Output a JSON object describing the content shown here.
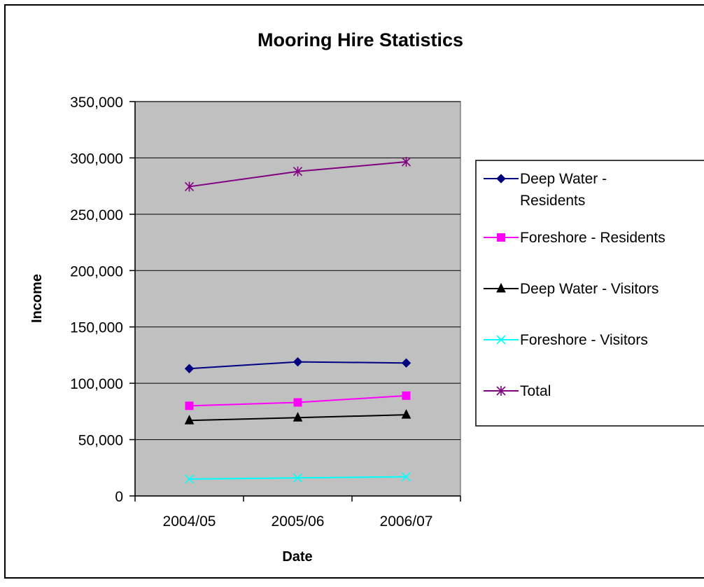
{
  "chart_data": {
    "type": "line",
    "title": "Mooring Hire Statistics",
    "xlabel": "Date",
    "ylabel": "Income",
    "categories": [
      "2004/05",
      "2005/06",
      "2006/07"
    ],
    "ylim": [
      0,
      350000
    ],
    "yticks": [
      0,
      50000,
      100000,
      150000,
      200000,
      250000,
      300000,
      350000
    ],
    "ytick_labels": [
      "0",
      "50,000",
      "100,000",
      "150,000",
      "200,000",
      "250,000",
      "300,000",
      "350,000"
    ],
    "grid": true,
    "legend_position": "right",
    "plot_background": "#c0c0c0",
    "series": [
      {
        "name": "Deep Water - Residents",
        "legend_lines": [
          "Deep Water -",
          "Residents"
        ],
        "color": "#000080",
        "marker": "diamond",
        "values": [
          113000,
          119000,
          118000
        ]
      },
      {
        "name": "Foreshore - Residents",
        "legend_lines": [
          "Foreshore - Residents"
        ],
        "color": "#ff00ff",
        "marker": "square",
        "values": [
          80000,
          83000,
          89000
        ]
      },
      {
        "name": "Deep Water - Visitors",
        "legend_lines": [
          "Deep Water - Visitors"
        ],
        "color": "#000000",
        "marker": "triangle",
        "values": [
          67000,
          69500,
          72000
        ]
      },
      {
        "name": "Foreshore - Visitors",
        "legend_lines": [
          "Foreshore - Visitors"
        ],
        "color": "#00ffff",
        "marker": "x",
        "values": [
          15000,
          16000,
          17000
        ]
      },
      {
        "name": "Total",
        "legend_lines": [
          "Total"
        ],
        "color": "#800080",
        "marker": "star",
        "values": [
          274500,
          288000,
          296500
        ]
      }
    ]
  }
}
